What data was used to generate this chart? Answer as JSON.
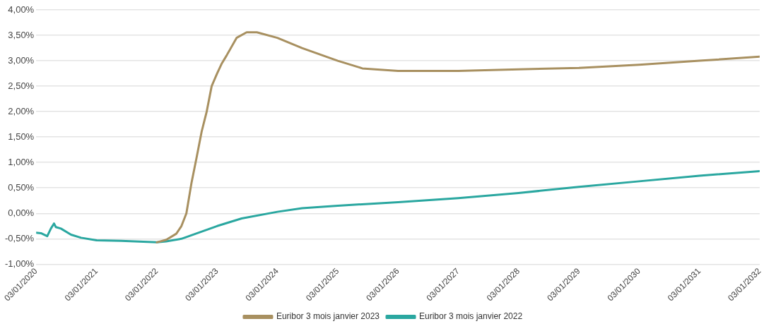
{
  "chart_data": {
    "type": "line",
    "legend": "bottom",
    "grid": "y",
    "marker": "none",
    "line_style": "solid",
    "xlim": [
      "2020-01-03",
      "2032-01-03"
    ],
    "xticks": [
      {
        "value": "2020-01-03",
        "label": "03/01/2020"
      },
      {
        "value": "2021-01-03",
        "label": "03/01/2021"
      },
      {
        "value": "2022-01-03",
        "label": "03/01/2022"
      },
      {
        "value": "2023-01-03",
        "label": "03/01/2023"
      },
      {
        "value": "2024-01-03",
        "label": "03/01/2024"
      },
      {
        "value": "2025-01-03",
        "label": "03/01/2025"
      },
      {
        "value": "2026-01-03",
        "label": "03/01/2026"
      },
      {
        "value": "2027-01-03",
        "label": "03/01/2027"
      },
      {
        "value": "2028-01-03",
        "label": "03/01/2028"
      },
      {
        "value": "2029-01-03",
        "label": "03/01/2029"
      },
      {
        "value": "2030-01-03",
        "label": "03/01/2030"
      },
      {
        "value": "2031-01-03",
        "label": "03/01/2031"
      },
      {
        "value": "2032-01-03",
        "label": "03/01/2032"
      }
    ],
    "ylim": [
      -1,
      4
    ],
    "yticks": [
      {
        "value": -1,
        "label": "-1,00%"
      },
      {
        "value": -0.5,
        "label": "-0,50%"
      },
      {
        "value": 0,
        "label": "0,00%"
      },
      {
        "value": 0.5,
        "label": "0,50%"
      },
      {
        "value": 1,
        "label": "1,00%"
      },
      {
        "value": 1.5,
        "label": "1,50%"
      },
      {
        "value": 2,
        "label": "2,00%"
      },
      {
        "value": 2.5,
        "label": "2,50%"
      },
      {
        "value": 3,
        "label": "3,00%"
      },
      {
        "value": 3.5,
        "label": "3,50%"
      },
      {
        "value": 4,
        "label": "4,00%"
      }
    ],
    "series": [
      {
        "name": "Euribor 3 mois janvier 2023",
        "color": "#a89060",
        "x": [
          "2022-01-03",
          "2022-03-01",
          "2022-05-01",
          "2022-06-01",
          "2022-07-01",
          "2022-08-01",
          "2022-09-01",
          "2022-10-01",
          "2022-11-01",
          "2022-12-01",
          "2023-01-03",
          "2023-02-01",
          "2023-03-01",
          "2023-05-01",
          "2023-07-01",
          "2023-09-01",
          "2024-01-03",
          "2024-06-01",
          "2025-01-03",
          "2025-06-01",
          "2026-01-03",
          "2027-01-03",
          "2028-01-03",
          "2029-01-03",
          "2030-01-03",
          "2031-01-03",
          "2032-01-03"
        ],
        "values": [
          -0.57,
          -0.52,
          -0.4,
          -0.25,
          0.0,
          0.6,
          1.1,
          1.6,
          2.0,
          2.5,
          2.75,
          2.95,
          3.1,
          3.45,
          3.56,
          3.56,
          3.45,
          3.25,
          3.0,
          2.85,
          2.8,
          2.8,
          2.83,
          2.86,
          2.92,
          3.0,
          3.08
        ]
      },
      {
        "name": "Euribor 3 mois janvier 2022",
        "color": "#2aa7a0",
        "x": [
          "2020-01-03",
          "2020-02-01",
          "2020-03-10",
          "2020-04-01",
          "2020-04-20",
          "2020-05-01",
          "2020-06-01",
          "2020-08-01",
          "2020-10-01",
          "2021-01-03",
          "2021-06-01",
          "2022-01-03",
          "2022-03-01",
          "2022-06-01",
          "2023-01-03",
          "2023-06-01",
          "2024-01-03",
          "2024-06-01",
          "2025-01-03",
          "2026-01-03",
          "2027-01-03",
          "2028-01-03",
          "2029-01-03",
          "2030-01-03",
          "2031-01-03",
          "2032-01-03"
        ],
        "values": [
          -0.38,
          -0.39,
          -0.45,
          -0.3,
          -0.2,
          -0.27,
          -0.3,
          -0.42,
          -0.48,
          -0.53,
          -0.54,
          -0.57,
          -0.55,
          -0.5,
          -0.25,
          -0.1,
          0.03,
          0.1,
          0.15,
          0.22,
          0.3,
          0.4,
          0.52,
          0.63,
          0.74,
          0.83
        ]
      }
    ]
  }
}
